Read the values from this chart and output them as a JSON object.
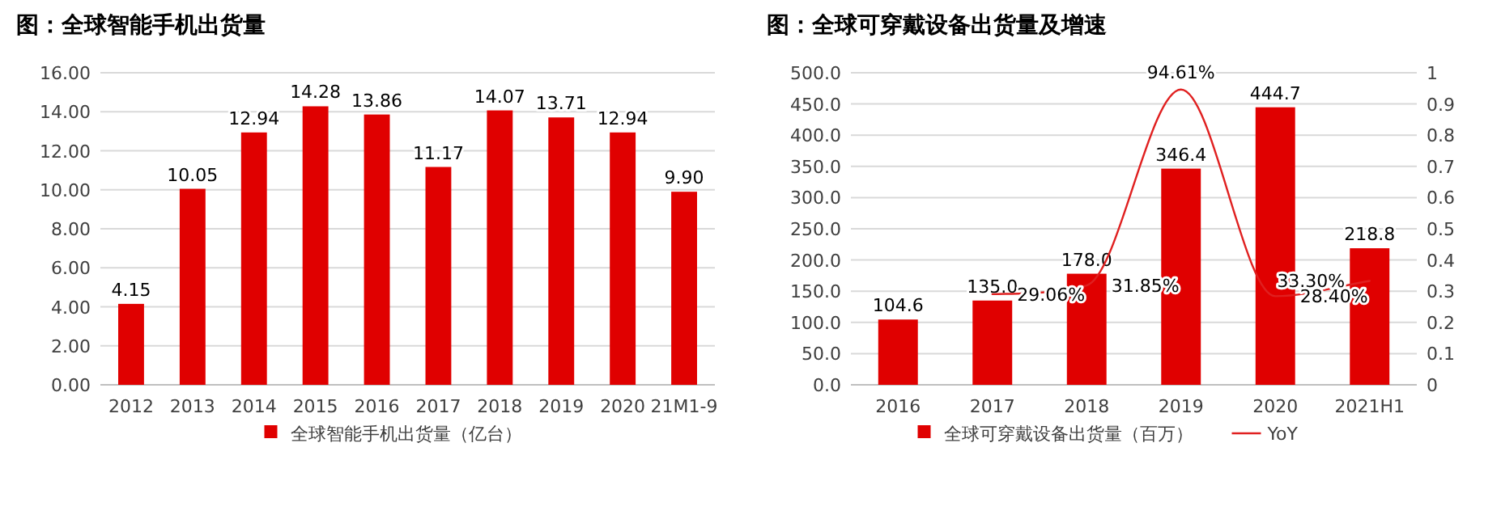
{
  "chart_data": [
    {
      "type": "bar",
      "title": "图：全球智能手机出货量",
      "categories": [
        "2012",
        "2013",
        "2014",
        "2015",
        "2016",
        "2017",
        "2018",
        "2019",
        "2020",
        "21M1-9"
      ],
      "series": [
        {
          "name": "全球智能手机出货量（亿台）",
          "color": "#e00000",
          "values": [
            4.15,
            10.05,
            12.94,
            14.28,
            13.86,
            11.17,
            14.07,
            13.71,
            12.94,
            9.9
          ],
          "value_labels": [
            "4.15",
            "10.05",
            "12.94",
            "14.28",
            "13.86",
            "11.17",
            "14.07",
            "13.71",
            "12.94",
            "9.90"
          ]
        }
      ],
      "ylim": [
        0,
        16
      ],
      "yticks": [
        {
          "value": 0,
          "label": "0.00"
        },
        {
          "value": 2,
          "label": "2.00"
        },
        {
          "value": 4,
          "label": "4.00"
        },
        {
          "value": 6,
          "label": "6.00"
        },
        {
          "value": 8,
          "label": "8.00"
        },
        {
          "value": 10,
          "label": "10.00"
        },
        {
          "value": 12,
          "label": "12.00"
        },
        {
          "value": 14,
          "label": "14.00"
        },
        {
          "value": 16,
          "label": "16.00"
        }
      ],
      "grid": "y",
      "legend": "bottom"
    },
    {
      "type": "bar",
      "title": "图：全球可穿戴设备出货量及增速",
      "categories": [
        "2016",
        "2017",
        "2018",
        "2019",
        "2020",
        "2021H1"
      ],
      "series": [
        {
          "name": "全球可穿戴设备出货量（百万）",
          "color": "#e00000",
          "values": [
            104.6,
            135.0,
            178.0,
            346.4,
            444.7,
            218.8
          ],
          "value_labels": [
            "104.6",
            "135.0",
            "178.0",
            "346.4",
            "444.7",
            "218.8"
          ]
        },
        {
          "name": "YoY",
          "type": "line",
          "axis": "y2",
          "color": "#e02020",
          "marker": "none",
          "line_style": "solid",
          "values": [
            null,
            0.2906,
            0.3185,
            0.9461,
            0.284,
            0.333
          ],
          "value_labels": [
            null,
            "29.06%",
            "31.85%",
            "94.61%",
            "28.40%",
            "33.30%"
          ]
        }
      ],
      "ylim": [
        0,
        500
      ],
      "yticks": [
        {
          "value": 0,
          "label": "0.0"
        },
        {
          "value": 50,
          "label": "50.0"
        },
        {
          "value": 100,
          "label": "100.0"
        },
        {
          "value": 150,
          "label": "150.0"
        },
        {
          "value": 200,
          "label": "200.0"
        },
        {
          "value": 250,
          "label": "250.0"
        },
        {
          "value": 300,
          "label": "300.0"
        },
        {
          "value": 350,
          "label": "350.0"
        },
        {
          "value": 400,
          "label": "400.0"
        },
        {
          "value": 450,
          "label": "450.0"
        },
        {
          "value": 500,
          "label": "500.0"
        }
      ],
      "y2lim": [
        0,
        1
      ],
      "y2ticks": [
        0,
        0.1,
        0.2,
        0.3,
        0.4,
        0.5,
        0.6,
        0.7,
        0.8,
        0.9,
        1
      ],
      "grid": "y",
      "legend": "bottom"
    }
  ]
}
